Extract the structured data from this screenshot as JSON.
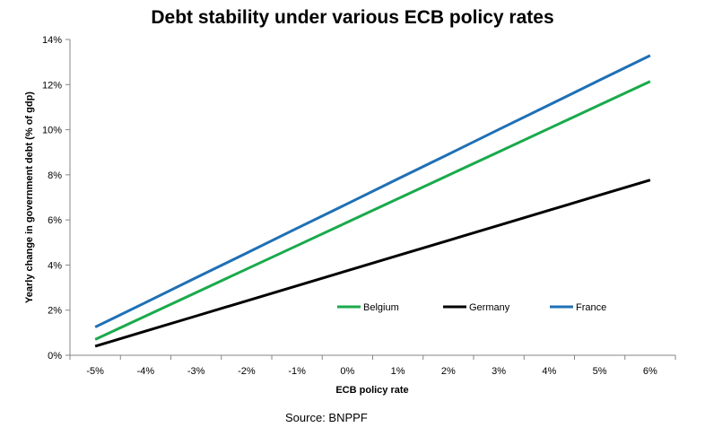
{
  "chart_data": {
    "type": "line",
    "title": "Debt stability under various ECB policy rates",
    "xlabel": "ECB policy rate",
    "ylabel": "Yearly change in government debt (% of gdp)",
    "x": [
      -5,
      -4,
      -3,
      -2,
      -1,
      0,
      1,
      2,
      3,
      4,
      5,
      6
    ],
    "x_tick_labels": [
      "-5%",
      "-4%",
      "-3%",
      "-2%",
      "-1%",
      "0%",
      "1%",
      "2%",
      "3%",
      "4%",
      "5%",
      "6%"
    ],
    "ylim": [
      0,
      14
    ],
    "y_ticks": [
      0,
      2,
      4,
      6,
      8,
      10,
      12,
      14
    ],
    "y_tick_labels": [
      "0%",
      "2%",
      "4%",
      "6%",
      "8%",
      "10%",
      "12%",
      "14%"
    ],
    "grid": false,
    "legend_position": "inside-bottom-right",
    "series": [
      {
        "name": "Belgium",
        "color": "#1aaa4b",
        "values": [
          0.7,
          1.74,
          2.78,
          3.82,
          4.86,
          5.9,
          6.94,
          7.98,
          9.02,
          10.06,
          11.1,
          12.14
        ]
      },
      {
        "name": "Germany",
        "color": "#000000",
        "values": [
          0.4,
          1.07,
          1.74,
          2.41,
          3.08,
          3.75,
          4.42,
          5.09,
          5.76,
          6.43,
          7.1,
          7.77
        ]
      },
      {
        "name": "France",
        "color": "#1f70b5",
        "values": [
          1.25,
          2.34,
          3.44,
          4.53,
          5.63,
          6.72,
          7.82,
          8.91,
          10.01,
          11.1,
          12.2,
          13.29
        ]
      }
    ]
  },
  "source": "Source:  BNPPF"
}
